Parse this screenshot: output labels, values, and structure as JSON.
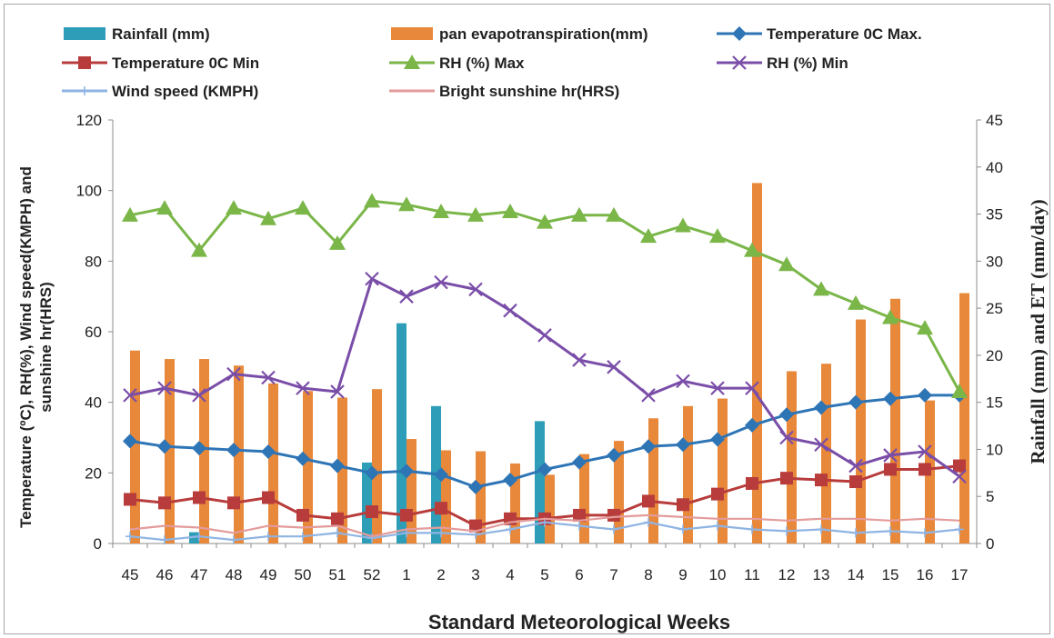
{
  "chart_data": {
    "type": "bar+line",
    "xlabel": "Standard  Meteorological Weeks",
    "ylabel_line1": "Temperature (ºC), RH(%), Wind speed(KMPH) and",
    "ylabel_line2": "sunshine hr(HRS)",
    "y2label": "Rainfall (mm) and ET (mm/day)",
    "ylim": [
      0,
      120
    ],
    "y_ticks": [
      "0",
      "20",
      "40",
      "60",
      "80",
      "100",
      "120"
    ],
    "y2lim": [
      0,
      45
    ],
    "y2_ticks": [
      "0",
      "5",
      "10",
      "15",
      "20",
      "25",
      "30",
      "35",
      "40",
      "45"
    ],
    "categories": [
      "45",
      "46",
      "47",
      "48",
      "49",
      "50",
      "51",
      "52",
      "1",
      "2",
      "3",
      "4",
      "5",
      "6",
      "7",
      "8",
      "9",
      "10",
      "11",
      "12",
      "13",
      "14",
      "15",
      "16",
      "17"
    ],
    "bar_series": [
      {
        "name": "Rainfall (mm)",
        "color": "#2e9eb8",
        "values": [
          0,
          0,
          1.2,
          0,
          0,
          0,
          0,
          8.6,
          23.4,
          14.6,
          0,
          0,
          13.0,
          0,
          0,
          0,
          0,
          0,
          0,
          0,
          0,
          0,
          0,
          0,
          0
        ]
      },
      {
        "name": "pan evapotranspiration(mm)",
        "color": "#e8883a",
        "values": [
          20.5,
          19.6,
          19.6,
          18.9,
          17.0,
          16.2,
          15.5,
          16.4,
          11.1,
          9.9,
          9.8,
          8.5,
          7.3,
          9.5,
          10.9,
          13.3,
          14.6,
          15.4,
          38.3,
          18.3,
          19.1,
          23.8,
          26.0,
          15.2,
          26.6
        ]
      }
    ],
    "line_series": [
      {
        "name": "Temperature 0C Max.",
        "color": "#2e75b6",
        "marker": "diamond",
        "values": [
          29,
          27.5,
          27,
          26.5,
          26,
          24,
          22,
          20,
          20.5,
          19.5,
          16,
          18,
          21,
          23,
          25,
          27.5,
          28,
          29.5,
          33.5,
          36.5,
          38.5,
          40,
          41,
          42,
          42
        ]
      },
      {
        "name": "Temperature 0C  Min",
        "color": "#b83c3c",
        "marker": "square",
        "values": [
          12.5,
          11.5,
          13,
          11.5,
          13,
          8,
          7,
          9,
          8,
          10,
          5,
          7,
          7,
          8,
          8,
          12,
          11,
          14,
          17,
          18.5,
          18,
          17.5,
          21,
          21,
          22
        ]
      },
      {
        "name": "RH (%) Max",
        "color": "#7ab648",
        "marker": "triangle",
        "values": [
          93,
          95,
          83,
          95,
          92,
          95,
          85,
          97,
          96,
          94,
          93,
          94,
          91,
          93,
          93,
          87,
          90,
          87,
          83,
          79,
          72,
          68,
          64,
          61,
          43
        ]
      },
      {
        "name": "RH (%) Min",
        "color": "#7a4ea8",
        "marker": "x",
        "values": [
          42,
          44,
          42,
          48,
          47,
          44,
          43,
          75,
          70,
          74,
          72,
          66,
          59,
          52,
          50,
          42,
          46,
          44,
          44,
          30,
          28,
          22,
          25,
          26,
          19
        ]
      },
      {
        "name": "Wind speed (KMPH)",
        "color": "#8fb4e3",
        "marker": "plus",
        "values": [
          2,
          1,
          2,
          1,
          2,
          2,
          3,
          1.5,
          3,
          3,
          2.5,
          4,
          6,
          5,
          4,
          6,
          4,
          5,
          4,
          3.5,
          4,
          3,
          3.5,
          3,
          4
        ]
      },
      {
        "name": "Bright sunshine hr(HRS)",
        "color": "#e49b9b",
        "marker": "none",
        "values": [
          4,
          5,
          4.5,
          3,
          5,
          4.5,
          5,
          2,
          4,
          4.5,
          3.5,
          6,
          7,
          6.5,
          7.5,
          8,
          7.5,
          7,
          7,
          6.5,
          7,
          7,
          6.5,
          7,
          6.5
        ]
      }
    ]
  }
}
